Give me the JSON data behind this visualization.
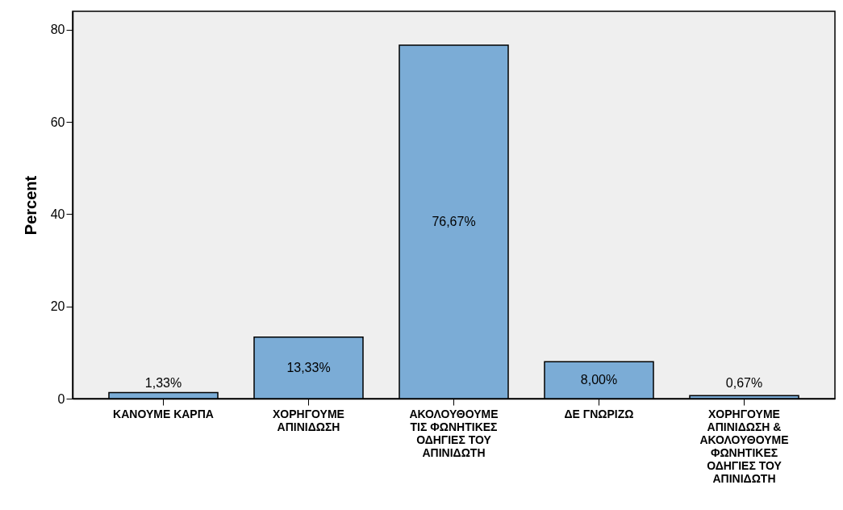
{
  "chart_data": {
    "type": "bar",
    "ylabel": "Percent",
    "categories": [
      "ΚΑΝΟΥΜΕ ΚΑΡΠΑ",
      "ΧΟΡΗΓΟΥΜΕ ΑΠΙΝΙΔΩΣΗ",
      "ΑΚΟΛΟΥΘΟΥΜΕ ΤΙΣ ΦΩΝΗΤΙΚΕΣ ΟΔΗΓΙΕΣ ΤΟΥ ΑΠΙΝΙΔΩΤΗ",
      "ΔΕ ΓΝΩΡΙΖΩ",
      "ΧΟΡΗΓΟΥΜΕ ΑΠΙΝΙΔΩΣΗ & ΑΚΟΛΟΥΘΟΥΜΕ ΦΩΝΗΤΙΚΕΣ ΟΔΗΓΙΕΣ ΤΟΥ ΑΠΙΝΙΔΩΤΗ"
    ],
    "values": [
      1.33,
      13.33,
      76.67,
      8.0,
      0.67
    ],
    "value_labels": [
      "1,33%",
      "13,33%",
      "76,67%",
      "8,00%",
      "0,67%"
    ],
    "color": "#7bacd6",
    "ylim": [
      0,
      84
    ],
    "yticks": [
      0,
      20,
      40,
      60,
      80
    ],
    "grid": false
  }
}
